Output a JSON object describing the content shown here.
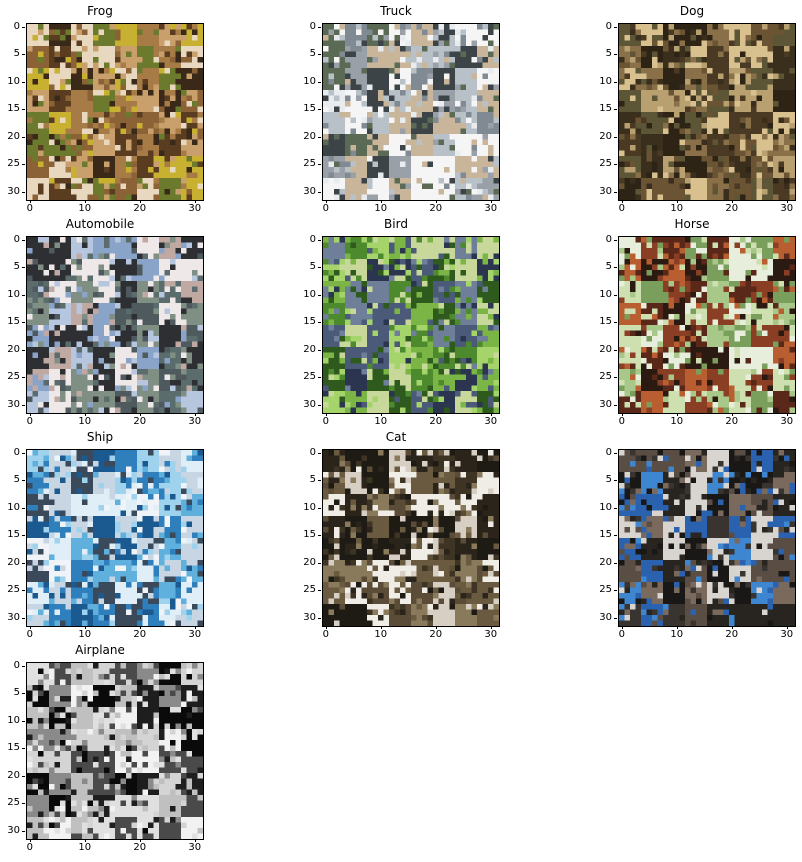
{
  "figure": {
    "panels": [
      {
        "title": "Frog",
        "image_icon": "frog-photo-icon",
        "palette": [
          "#5a3d20",
          "#8a6235",
          "#a77b46",
          "#c9a06b",
          "#e8d8c0",
          "#6b7a2c",
          "#c8b030",
          "#3a2818"
        ]
      },
      {
        "title": "Truck",
        "image_icon": "truck-photo-icon",
        "palette": [
          "#e8ecef",
          "#b9c1c8",
          "#7f8a93",
          "#3d4448",
          "#c9b59a",
          "#5a6a54",
          "#f5f5f5",
          "#9aa0a8"
        ]
      },
      {
        "title": "Dog",
        "image_icon": "dog-photo-icon",
        "palette": [
          "#4a3a24",
          "#6a5433",
          "#8a7048",
          "#b8a070",
          "#d9c08f",
          "#3a2e1d",
          "#5c5636",
          "#2e2416"
        ]
      },
      {
        "title": "Automobile",
        "image_icon": "automobile-photo-icon",
        "palette": [
          "#8aa3c8",
          "#b6c6de",
          "#5b6c6c",
          "#7f8f84",
          "#c0a9a3",
          "#efe8e8",
          "#2d2f33",
          "#4f5a5f"
        ]
      },
      {
        "title": "Bird",
        "image_icon": "bird-photo-icon",
        "palette": [
          "#4d8a2e",
          "#7bb545",
          "#a5d46a",
          "#2e5a1e",
          "#4a5a78",
          "#2b3550",
          "#c8d89a",
          "#6f7f9a"
        ]
      },
      {
        "title": "Horse",
        "image_icon": "horse-photo-icon",
        "palette": [
          "#cfe0b0",
          "#a8c88a",
          "#7a9e5c",
          "#8a3e24",
          "#5a2818",
          "#2a1a12",
          "#b85e30",
          "#e8eedc"
        ]
      },
      {
        "title": "Ship",
        "image_icon": "ship-photo-icon",
        "palette": [
          "#9fd2ec",
          "#5fb0dc",
          "#2e7fbc",
          "#1a5a90",
          "#f0f4f8",
          "#c8d6e4",
          "#3a4a5a",
          "#e0eef8"
        ]
      },
      {
        "title": "Cat",
        "image_icon": "cat-photo-icon",
        "palette": [
          "#2a241a",
          "#3e3424",
          "#5a4c36",
          "#8a7a5c",
          "#d8cfc4",
          "#f0ece6",
          "#6a5a40",
          "#1e1a14"
        ]
      },
      {
        "title": "",
        "image_icon": "dog-in-blue-coat-photo-icon",
        "palette": [
          "#3a3430",
          "#5a4e44",
          "#1a1816",
          "#2a62b0",
          "#3e86d0",
          "#7a6a5e",
          "#d8d4d0",
          "#282420"
        ]
      },
      {
        "title": "Airplane",
        "image_icon": "airplane-photo-icon",
        "palette": [
          "#f2f2f2",
          "#e0e0e0",
          "#c0c0c0",
          "#8a8a8a",
          "#4a4a4a",
          "#1e1e1e",
          "#0a0a0a",
          "#d4d4d4"
        ]
      }
    ],
    "y_ticks": [
      "0",
      "5",
      "10",
      "15",
      "20",
      "25",
      "30"
    ],
    "x_ticks": [
      "0",
      "10",
      "20",
      "30"
    ],
    "axis_range": [
      0,
      31
    ]
  }
}
